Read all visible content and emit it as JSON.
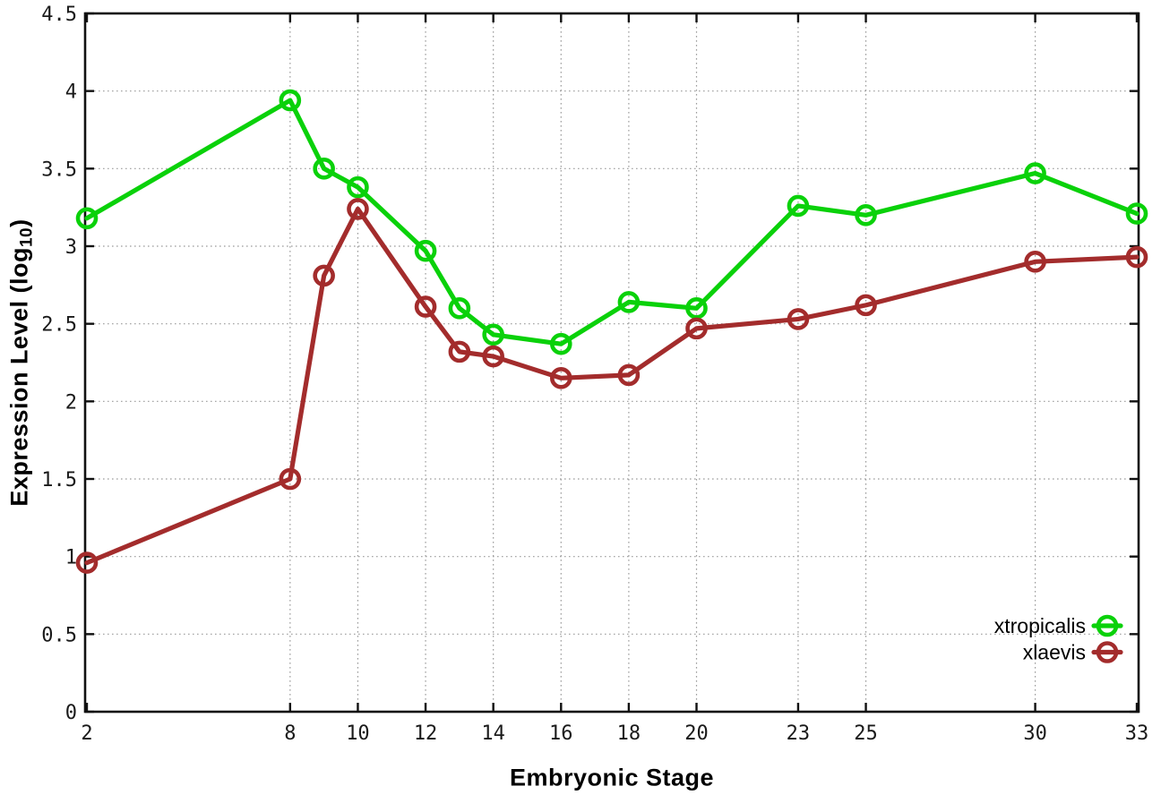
{
  "figure": {
    "background": "#ffffff"
  },
  "chart_data": {
    "type": "line",
    "title": "",
    "xlabel": "Embryonic Stage",
    "ylabel": "Expression Level (log10)",
    "ylabel_parts": {
      "pre": "Expression Level (log",
      "sub": "10",
      "post": ")"
    },
    "x": [
      2,
      8,
      9,
      10,
      12,
      13,
      14,
      16,
      18,
      20,
      23,
      25,
      30,
      33
    ],
    "series": [
      {
        "name": "xtropicalis",
        "color": "#0ad10a",
        "values": [
          3.18,
          3.94,
          3.5,
          3.38,
          2.97,
          2.6,
          2.43,
          2.37,
          2.64,
          2.6,
          3.26,
          3.2,
          3.47,
          3.21
        ]
      },
      {
        "name": "xlaevis",
        "color": "#a32c2c",
        "values": [
          0.96,
          1.5,
          2.81,
          3.24,
          2.61,
          2.32,
          2.29,
          2.15,
          2.17,
          2.47,
          2.53,
          2.62,
          2.9,
          2.93
        ]
      }
    ],
    "xlim": [
      2,
      33
    ],
    "ylim": [
      0,
      4.5
    ],
    "xticks": [
      2,
      8,
      10,
      12,
      14,
      16,
      18,
      20,
      23,
      25,
      30,
      33
    ],
    "xtick_labels": [
      "2",
      "8",
      "10",
      "12",
      "14",
      "16",
      "18",
      "20",
      "23",
      "25",
      "30",
      "33"
    ],
    "yticks": [
      0,
      0.5,
      1,
      1.5,
      2,
      2.5,
      3,
      3.5,
      4,
      4.5
    ],
    "ytick_labels": [
      "0",
      "0.5",
      "1",
      "1.5",
      "2",
      "2.5",
      "3",
      "3.5",
      "4",
      "4.5"
    ],
    "grid": true,
    "grid_style": "dotted",
    "marker": "open-circle",
    "legend": {
      "position": "inside-bottom-right",
      "entries": [
        "xtropicalis",
        "xlaevis"
      ]
    },
    "colors": {
      "border": "#111111",
      "grid": "#9c9c9c",
      "tick_label": "#1a1a1a",
      "axis_label": "#000000"
    }
  }
}
